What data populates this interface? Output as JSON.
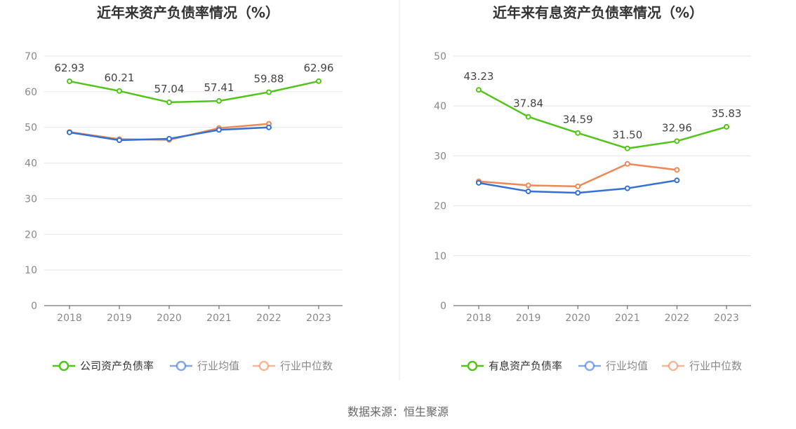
{
  "source_text": "数据来源：恒生聚源",
  "chart_data": [
    {
      "type": "line",
      "title": "近年来资产负债率情况（%）",
      "categories": [
        "2018",
        "2019",
        "2020",
        "2021",
        "2022",
        "2023"
      ],
      "ylim": [
        0,
        70
      ],
      "yticks": [
        0,
        10,
        20,
        30,
        40,
        50,
        60,
        70
      ],
      "ytick_labels": [
        "0",
        "10",
        "20",
        "30",
        "40",
        "50",
        "60",
        "70"
      ],
      "grid": true,
      "legend_position": "bottom",
      "series": [
        {
          "name": "公司资产负债率",
          "color": "#52c41a",
          "values": [
            62.93,
            60.21,
            57.04,
            57.41,
            59.88,
            62.96
          ],
          "labels": [
            "62.93",
            "60.21",
            "57.04",
            "57.41",
            "59.88",
            "62.96"
          ]
        },
        {
          "name": "行业均值",
          "color": "#3470d6",
          "values": [
            48.6,
            46.4,
            46.8,
            49.3,
            50.0,
            null
          ]
        },
        {
          "name": "行业中位数",
          "color": "#ee8855",
          "values": [
            48.7,
            46.7,
            46.5,
            49.8,
            51.0,
            null
          ]
        }
      ]
    },
    {
      "type": "line",
      "title": "近年来有息资产负债率情况（%）",
      "categories": [
        "2018",
        "2019",
        "2020",
        "2021",
        "2022",
        "2023"
      ],
      "ylim": [
        0,
        50
      ],
      "yticks": [
        0,
        10,
        20,
        30,
        40,
        50
      ],
      "ytick_labels": [
        "0",
        "10",
        "20",
        "30",
        "40",
        "50"
      ],
      "grid": true,
      "legend_position": "bottom",
      "series": [
        {
          "name": "有息资产负债率",
          "color": "#52c41a",
          "values": [
            43.23,
            37.84,
            34.59,
            31.5,
            32.96,
            35.83
          ],
          "labels": [
            "43.23",
            "37.84",
            "34.59",
            "31.50",
            "32.96",
            "35.83"
          ]
        },
        {
          "name": "行业均值",
          "color": "#3470d6",
          "values": [
            24.6,
            22.9,
            22.6,
            23.5,
            25.1,
            null
          ]
        },
        {
          "name": "行业中位数",
          "color": "#ee8855",
          "values": [
            24.9,
            24.1,
            23.9,
            28.4,
            27.2,
            null
          ]
        }
      ]
    }
  ]
}
